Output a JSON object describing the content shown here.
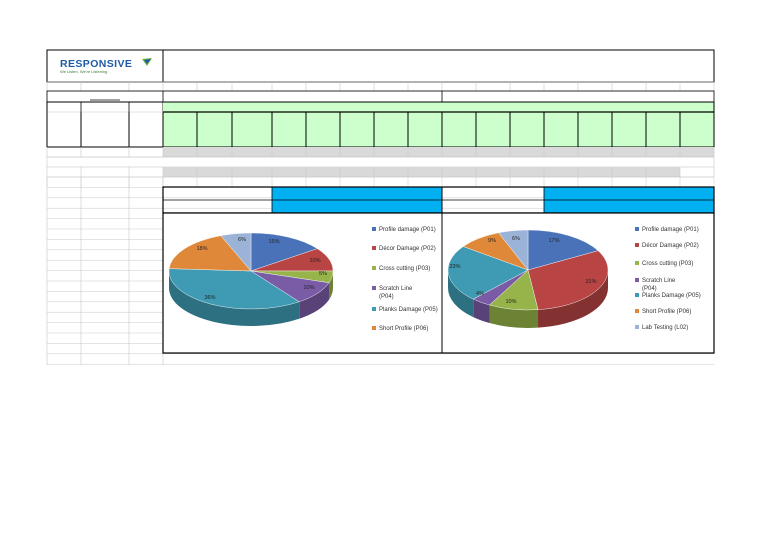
{
  "brand": {
    "name": "RESPONSIVE",
    "tagline": "We Listen. We're Listening"
  },
  "colors": {
    "green_header": "#ccffcc",
    "grey_row": "#d9d9d9",
    "blue_band": "#00b0f0",
    "grid": "#c8c8c8",
    "border": "#000000"
  },
  "chart_data": [
    {
      "type": "pie",
      "series": [
        {
          "label": "Profile damage (P01)",
          "value": 15,
          "color": "#4a72b8"
        },
        {
          "label": "Décor Damage (P02)",
          "value": 10,
          "color": "#b84444"
        },
        {
          "label": "Cross cutting (P03)",
          "value": 5,
          "color": "#96b44a"
        },
        {
          "label": "Scratch Line\n(P04)",
          "value": 10,
          "color": "#7a5ba5"
        },
        {
          "label": "Planks Damage (P05)",
          "value": 36,
          "color": "#3f9bb3"
        },
        {
          "label": "Short Profile (P06)",
          "value": 18,
          "color": "#e0883a"
        },
        {
          "label": "",
          "value": 6,
          "color": "#9cb3d8"
        }
      ],
      "data_labels": [
        "15%",
        "10%",
        "5%",
        "10%",
        "36%",
        "18%",
        "6%"
      ]
    },
    {
      "type": "pie",
      "series": [
        {
          "label": "Profile damage (P01)",
          "value": 17,
          "color": "#4a72b8"
        },
        {
          "label": "Décor Damage (P02)",
          "value": 31,
          "color": "#b84444"
        },
        {
          "label": "Cross cutting (P03)",
          "value": 10,
          "color": "#96b44a"
        },
        {
          "label": "Scratch Line\n(P04)",
          "value": 4,
          "color": "#7a5ba5"
        },
        {
          "label": "Planks Damage (P05)",
          "value": 23,
          "color": "#3f9bb3"
        },
        {
          "label": "Short Profile (P06)",
          "value": 9,
          "color": "#e0883a"
        },
        {
          "label": "Lab Testing (L02)",
          "value": 6,
          "color": "#9cb3d8"
        }
      ],
      "data_labels": [
        "17%",
        "31%",
        "10%",
        "4%",
        "23%",
        "9%",
        "6%"
      ]
    }
  ]
}
